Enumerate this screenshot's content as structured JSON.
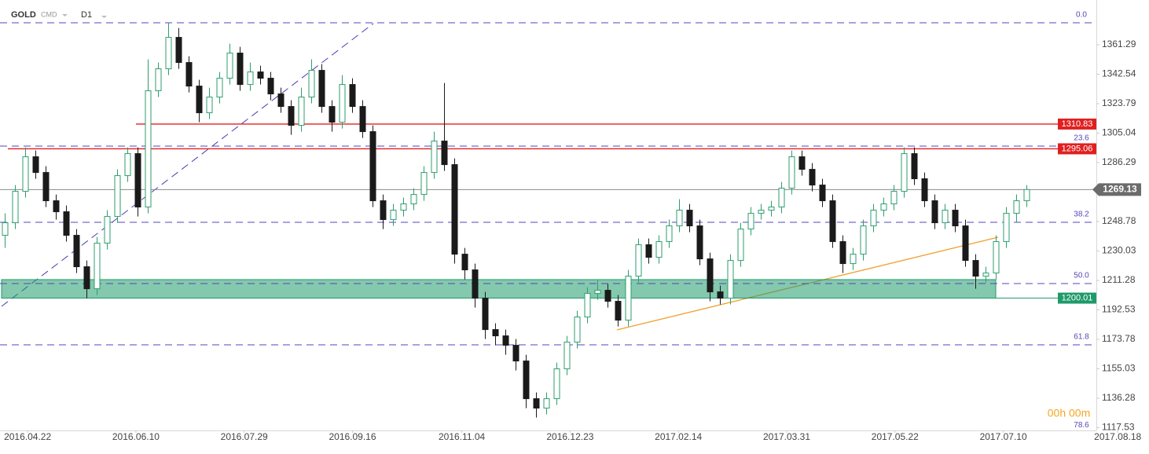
{
  "chart_data": {
    "type": "candlestick",
    "symbol": "GOLD",
    "market": "CMD",
    "timeframe": "D1",
    "timer": "00h 00m",
    "up_color": "#2e9e6e",
    "down_color": "#1a1a1a",
    "xlim": [
      0,
      110
    ],
    "ylim": [
      1115.79,
      1389.79
    ],
    "xticks": [
      {
        "value": 2.7,
        "label": "2016.04.22"
      },
      {
        "value": 13.3,
        "label": "2016.06.10"
      },
      {
        "value": 23.9,
        "label": "2016.07.29"
      },
      {
        "value": 34.5,
        "label": "2016.09.16"
      },
      {
        "value": 45.2,
        "label": "2016.11.04"
      },
      {
        "value": 55.8,
        "label": "2016.12.23"
      },
      {
        "value": 66.4,
        "label": "2017.02.14"
      },
      {
        "value": 77.0,
        "label": "2017.03.31"
      },
      {
        "value": 87.6,
        "label": "2017.05.22"
      },
      {
        "value": 98.2,
        "label": "2017.07.10"
      },
      {
        "value": 109.4,
        "label": "2017.08.18"
      }
    ],
    "yticks": [
      1361.29,
      1342.54,
      1323.79,
      1305.04,
      1286.29,
      1248.78,
      1230.03,
      1211.28,
      1192.53,
      1173.78,
      1155.03,
      1136.28,
      1117.53
    ],
    "open": [
      1240,
      1248,
      1268,
      1290,
      1280,
      1262,
      1255,
      1240,
      1220,
      1206,
      1235,
      1252,
      1278,
      1292,
      1258,
      1332,
      1346,
      1366,
      1350,
      1335,
      1318,
      1328,
      1340,
      1356,
      1336,
      1344,
      1340,
      1330,
      1322,
      1310,
      1328,
      1345,
      1322,
      1312,
      1336,
      1322,
      1306,
      1262,
      1250,
      1256,
      1260,
      1266,
      1280,
      1300,
      1285,
      1228,
      1218,
      1200,
      1180,
      1176,
      1170,
      1160,
      1136,
      1130,
      1136,
      1155,
      1172,
      1188,
      1203,
      1205,
      1198,
      1186,
      1214,
      1234,
      1226,
      1236,
      1246,
      1256,
      1246,
      1225,
      1204,
      1200,
      1224,
      1244,
      1254,
      1256,
      1258,
      1270,
      1290,
      1282,
      1272,
      1262,
      1236,
      1222,
      1228,
      1246,
      1256,
      1260,
      1268,
      1292,
      1276,
      1262,
      1248,
      1256,
      1246,
      1224,
      1214,
      1216,
      1236,
      1254,
      1262
    ],
    "high": [
      1254,
      1272,
      1296,
      1294,
      1284,
      1266,
      1259,
      1244,
      1224,
      1239,
      1256,
      1282,
      1296,
      1296,
      1352,
      1350,
      1375,
      1372,
      1354,
      1339,
      1334,
      1344,
      1362,
      1360,
      1350,
      1348,
      1344,
      1334,
      1326,
      1334,
      1352,
      1349,
      1326,
      1342,
      1340,
      1326,
      1310,
      1266,
      1260,
      1264,
      1270,
      1284,
      1306,
      1337,
      1289,
      1232,
      1222,
      1204,
      1184,
      1180,
      1174,
      1164,
      1140,
      1140,
      1159,
      1176,
      1192,
      1207,
      1212,
      1209,
      1202,
      1218,
      1238,
      1238,
      1240,
      1250,
      1263,
      1260,
      1250,
      1229,
      1208,
      1228,
      1248,
      1258,
      1260,
      1262,
      1274,
      1294,
      1294,
      1286,
      1276,
      1266,
      1240,
      1232,
      1250,
      1260,
      1264,
      1272,
      1296,
      1296,
      1280,
      1266,
      1260,
      1260,
      1250,
      1228,
      1220,
      1240,
      1258,
      1266,
      1272
    ],
    "low": [
      1232,
      1244,
      1264,
      1276,
      1258,
      1250,
      1236,
      1216,
      1200,
      1202,
      1231,
      1248,
      1274,
      1252,
      1254,
      1328,
      1342,
      1346,
      1331,
      1312,
      1314,
      1324,
      1336,
      1332,
      1332,
      1336,
      1326,
      1318,
      1304,
      1306,
      1324,
      1318,
      1306,
      1308,
      1318,
      1302,
      1258,
      1244,
      1246,
      1252,
      1256,
      1262,
      1276,
      1281,
      1222,
      1212,
      1194,
      1174,
      1170,
      1164,
      1154,
      1130,
      1124,
      1126,
      1132,
      1151,
      1168,
      1184,
      1199,
      1194,
      1182,
      1182,
      1210,
      1222,
      1222,
      1232,
      1242,
      1242,
      1221,
      1198,
      1196,
      1196,
      1220,
      1240,
      1250,
      1252,
      1254,
      1266,
      1278,
      1268,
      1258,
      1232,
      1216,
      1218,
      1224,
      1242,
      1252,
      1256,
      1264,
      1272,
      1258,
      1244,
      1244,
      1242,
      1220,
      1206,
      1210,
      1212,
      1232,
      1248,
      1258
    ],
    "close": [
      1248,
      1268,
      1290,
      1280,
      1262,
      1255,
      1240,
      1220,
      1206,
      1235,
      1252,
      1278,
      1292,
      1258,
      1332,
      1346,
      1366,
      1350,
      1335,
      1318,
      1328,
      1340,
      1356,
      1336,
      1344,
      1340,
      1330,
      1322,
      1310,
      1328,
      1345,
      1322,
      1312,
      1336,
      1322,
      1306,
      1262,
      1250,
      1256,
      1260,
      1266,
      1280,
      1300,
      1285,
      1228,
      1218,
      1200,
      1180,
      1176,
      1170,
      1160,
      1136,
      1130,
      1136,
      1155,
      1172,
      1188,
      1203,
      1205,
      1198,
      1186,
      1214,
      1234,
      1226,
      1236,
      1246,
      1256,
      1246,
      1225,
      1204,
      1200,
      1224,
      1244,
      1254,
      1256,
      1258,
      1270,
      1290,
      1282,
      1272,
      1262,
      1236,
      1222,
      1228,
      1246,
      1256,
      1260,
      1268,
      1292,
      1276,
      1262,
      1248,
      1256,
      1246,
      1224,
      1214,
      1216,
      1236,
      1254,
      1262,
      1269.13
    ],
    "fib_levels": [
      {
        "level": "0.0",
        "price": 1375.3
      },
      {
        "level": "23.6",
        "price": 1296.8
      },
      {
        "level": "38.2",
        "price": 1248.3
      },
      {
        "level": "50.0",
        "price": 1209.3
      },
      {
        "level": "61.8",
        "price": 1170.3
      },
      {
        "level": "78.6",
        "price": 1114.2
      }
    ],
    "price_lines": [
      {
        "value": 1310.83,
        "color": "#e02020"
      },
      {
        "value": 1295.06,
        "color": "#e02020"
      }
    ],
    "zone": {
      "top": 1211.8,
      "bottom": 1200.01,
      "color": "#1f9a6a"
    },
    "last_price": 1269.13
  }
}
